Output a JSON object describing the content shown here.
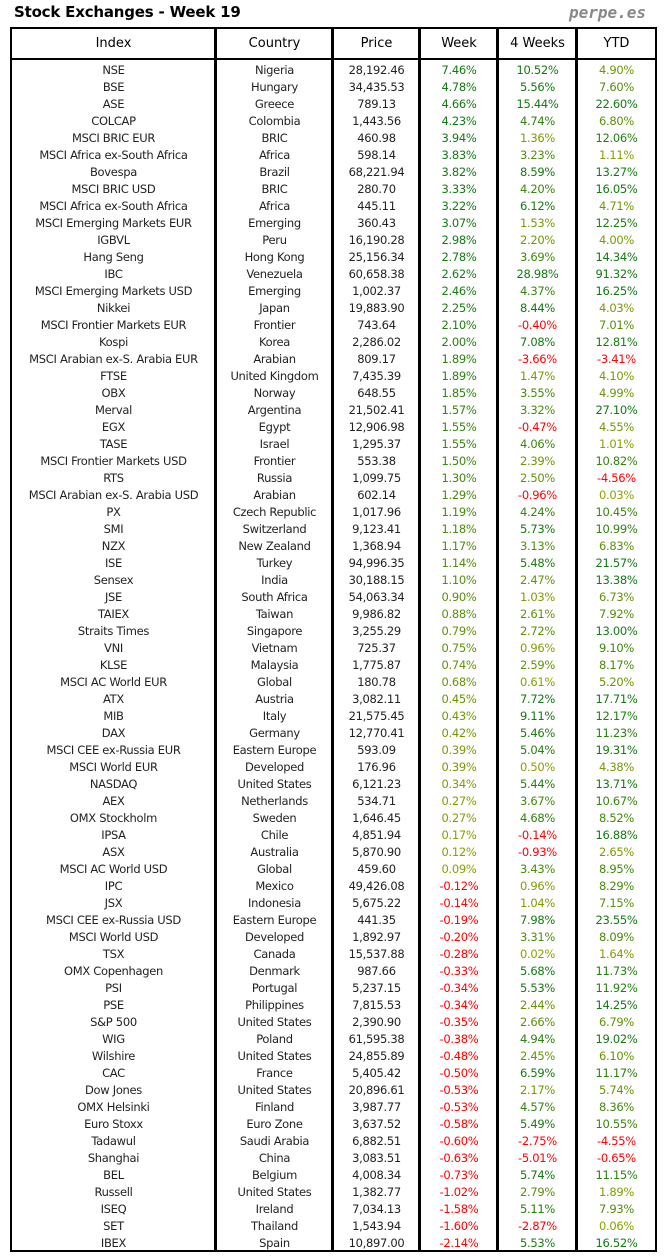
{
  "title": "Stock Exchanges - Week 19",
  "brand": "perpe.es",
  "colors": {
    "negative": "#ff0000",
    "positive_high": "#137a13",
    "positive_low": "#8fa000",
    "text": "#222222"
  },
  "table": {
    "headers": [
      "Index",
      "Country",
      "Price",
      "Week",
      "4 Weeks",
      "YTD"
    ],
    "rows": [
      [
        "NSE",
        "Nigeria",
        "28,192.46",
        "7.46%",
        "10.52%",
        "4.90%"
      ],
      [
        "BSE",
        "Hungary",
        "34,435.53",
        "4.78%",
        "5.56%",
        "7.60%"
      ],
      [
        "ASE",
        "Greece",
        "789.13",
        "4.66%",
        "15.44%",
        "22.60%"
      ],
      [
        "COLCAP",
        "Colombia",
        "1,443.56",
        "4.23%",
        "4.74%",
        "6.80%"
      ],
      [
        "MSCI BRIC EUR",
        "BRIC",
        "460.98",
        "3.94%",
        "1.36%",
        "12.06%"
      ],
      [
        "MSCI Africa ex-South Africa",
        "Africa",
        "598.14",
        "3.83%",
        "3.23%",
        "1.11%"
      ],
      [
        "Bovespa",
        "Brazil",
        "68,221.94",
        "3.82%",
        "8.59%",
        "13.27%"
      ],
      [
        "MSCI BRIC USD",
        "BRIC",
        "280.70",
        "3.33%",
        "4.20%",
        "16.05%"
      ],
      [
        "MSCI Africa ex-South Africa",
        "Africa",
        "445.11",
        "3.22%",
        "6.12%",
        "4.71%"
      ],
      [
        "MSCI Emerging Markets EUR",
        "Emerging",
        "360.43",
        "3.07%",
        "1.53%",
        "12.25%"
      ],
      [
        "IGBVL",
        "Peru",
        "16,190.28",
        "2.98%",
        "2.20%",
        "4.00%"
      ],
      [
        "Hang Seng",
        "Hong Kong",
        "25,156.34",
        "2.78%",
        "3.69%",
        "14.34%"
      ],
      [
        "IBC",
        "Venezuela",
        "60,658.38",
        "2.62%",
        "28.98%",
        "91.32%"
      ],
      [
        "MSCI Emerging Markets USD",
        "Emerging",
        "1,002.37",
        "2.46%",
        "4.37%",
        "16.25%"
      ],
      [
        "Nikkei",
        "Japan",
        "19,883.90",
        "2.25%",
        "8.44%",
        "4.03%"
      ],
      [
        "MSCI Frontier Markets EUR",
        "Frontier",
        "743.64",
        "2.10%",
        "-0.40%",
        "7.01%"
      ],
      [
        "Kospi",
        "Korea",
        "2,286.02",
        "2.00%",
        "7.08%",
        "12.81%"
      ],
      [
        "MSCI Arabian ex-S. Arabia EUR",
        "Arabian",
        "809.17",
        "1.89%",
        "-3.66%",
        "-3.41%"
      ],
      [
        "FTSE",
        "United Kingdom",
        "7,435.39",
        "1.89%",
        "1.47%",
        "4.10%"
      ],
      [
        "OBX",
        "Norway",
        "648.55",
        "1.85%",
        "3.55%",
        "4.99%"
      ],
      [
        "Merval",
        "Argentina",
        "21,502.41",
        "1.57%",
        "3.32%",
        "27.10%"
      ],
      [
        "EGX",
        "Egypt",
        "12,906.98",
        "1.55%",
        "-0.47%",
        "4.55%"
      ],
      [
        "TASE",
        "Israel",
        "1,295.37",
        "1.55%",
        "4.06%",
        "1.01%"
      ],
      [
        "MSCI Frontier Markets USD",
        "Frontier",
        "553.38",
        "1.50%",
        "2.39%",
        "10.82%"
      ],
      [
        "RTS",
        "Russia",
        "1,099.75",
        "1.30%",
        "2.50%",
        "-4.56%"
      ],
      [
        "MSCI Arabian ex-S. Arabia USD",
        "Arabian",
        "602.14",
        "1.29%",
        "-0.96%",
        "0.03%"
      ],
      [
        "PX",
        "Czech Republic",
        "1,017.96",
        "1.19%",
        "4.24%",
        "10.45%"
      ],
      [
        "SMI",
        "Switzerland",
        "9,123.41",
        "1.18%",
        "5.73%",
        "10.99%"
      ],
      [
        "NZX",
        "New Zealand",
        "1,368.94",
        "1.17%",
        "3.13%",
        "6.83%"
      ],
      [
        "ISE",
        "Turkey",
        "94,996.35",
        "1.14%",
        "5.48%",
        "21.57%"
      ],
      [
        "Sensex",
        "India",
        "30,188.15",
        "1.10%",
        "2.47%",
        "13.38%"
      ],
      [
        "JSE",
        "South Africa",
        "54,063.34",
        "0.90%",
        "1.03%",
        "6.73%"
      ],
      [
        "TAIEX",
        "Taiwan",
        "9,986.82",
        "0.88%",
        "2.61%",
        "7.92%"
      ],
      [
        "Straits Times",
        "Singapore",
        "3,255.29",
        "0.79%",
        "2.72%",
        "13.00%"
      ],
      [
        "VNI",
        "Vietnam",
        "725.37",
        "0.75%",
        "0.96%",
        "9.10%"
      ],
      [
        "KLSE",
        "Malaysia",
        "1,775.87",
        "0.74%",
        "2.59%",
        "8.17%"
      ],
      [
        "MSCI AC World EUR",
        "Global",
        "180.78",
        "0.68%",
        "0.61%",
        "5.20%"
      ],
      [
        "ATX",
        "Austria",
        "3,082.11",
        "0.45%",
        "7.72%",
        "17.71%"
      ],
      [
        "MIB",
        "Italy",
        "21,575.45",
        "0.43%",
        "9.11%",
        "12.17%"
      ],
      [
        "DAX",
        "Germany",
        "12,770.41",
        "0.42%",
        "5.46%",
        "11.23%"
      ],
      [
        "MSCI CEE ex-Russia EUR",
        "Eastern Europe",
        "593.09",
        "0.39%",
        "5.04%",
        "19.31%"
      ],
      [
        "MSCI World EUR",
        "Developed",
        "176.96",
        "0.39%",
        "0.50%",
        "4.38%"
      ],
      [
        "NASDAQ",
        "United States",
        "6,121.23",
        "0.34%",
        "5.44%",
        "13.71%"
      ],
      [
        "AEX",
        "Netherlands",
        "534.71",
        "0.27%",
        "3.67%",
        "10.67%"
      ],
      [
        "OMX Stockholm",
        "Sweden",
        "1,646.45",
        "0.27%",
        "4.68%",
        "8.52%"
      ],
      [
        "IPSA",
        "Chile",
        "4,851.94",
        "0.17%",
        "-0.14%",
        "16.88%"
      ],
      [
        "ASX",
        "Australia",
        "5,870.90",
        "0.12%",
        "-0.93%",
        "2.65%"
      ],
      [
        "MSCI AC World USD",
        "Global",
        "459.60",
        "0.09%",
        "3.43%",
        "8.95%"
      ],
      [
        "IPC",
        "Mexico",
        "49,426.08",
        "-0.12%",
        "0.96%",
        "8.29%"
      ],
      [
        "JSX",
        "Indonesia",
        "5,675.22",
        "-0.14%",
        "1.04%",
        "7.15%"
      ],
      [
        "MSCI CEE ex-Russia USD",
        "Eastern Europe",
        "441.35",
        "-0.19%",
        "7.98%",
        "23.55%"
      ],
      [
        "MSCI World USD",
        "Developed",
        "1,892.97",
        "-0.20%",
        "3.31%",
        "8.09%"
      ],
      [
        "TSX",
        "Canada",
        "15,537.88",
        "-0.28%",
        "0.02%",
        "1.64%"
      ],
      [
        "OMX Copenhagen",
        "Denmark",
        "987.66",
        "-0.33%",
        "5.68%",
        "11.73%"
      ],
      [
        "PSI",
        "Portugal",
        "5,237.15",
        "-0.34%",
        "5.53%",
        "11.92%"
      ],
      [
        "PSE",
        "Philippines",
        "7,815.53",
        "-0.34%",
        "2.44%",
        "14.25%"
      ],
      [
        "S&P 500",
        "United States",
        "2,390.90",
        "-0.35%",
        "2.66%",
        "6.79%"
      ],
      [
        "WIG",
        "Poland",
        "61,595.38",
        "-0.38%",
        "4.94%",
        "19.02%"
      ],
      [
        "Wilshire",
        "United States",
        "24,855.89",
        "-0.48%",
        "2.45%",
        "6.10%"
      ],
      [
        "CAC",
        "France",
        "5,405.42",
        "-0.50%",
        "6.59%",
        "11.17%"
      ],
      [
        "Dow Jones",
        "United States",
        "20,896.61",
        "-0.53%",
        "2.17%",
        "5.74%"
      ],
      [
        "OMX Helsinki",
        "Finland",
        "3,987.77",
        "-0.53%",
        "4.57%",
        "8.36%"
      ],
      [
        "Euro Stoxx",
        "Euro Zone",
        "3,637.52",
        "-0.58%",
        "5.49%",
        "10.55%"
      ],
      [
        "Tadawul",
        "Saudi Arabia",
        "6,882.51",
        "-0.60%",
        "-2.75%",
        "-4.55%"
      ],
      [
        "Shanghai",
        "China",
        "3,083.51",
        "-0.63%",
        "-5.01%",
        "-0.65%"
      ],
      [
        "BEL",
        "Belgium",
        "4,008.34",
        "-0.73%",
        "5.74%",
        "11.15%"
      ],
      [
        "Russell",
        "United States",
        "1,382.77",
        "-1.02%",
        "2.79%",
        "1.89%"
      ],
      [
        "ISEQ",
        "Ireland",
        "7,034.13",
        "-1.58%",
        "5.11%",
        "7.93%"
      ],
      [
        "SET",
        "Thailand",
        "1,543.94",
        "-1.60%",
        "-2.87%",
        "0.06%"
      ],
      [
        "IBEX",
        "Spain",
        "10,897.00",
        "-2.14%",
        "5.53%",
        "16.52%"
      ]
    ]
  }
}
